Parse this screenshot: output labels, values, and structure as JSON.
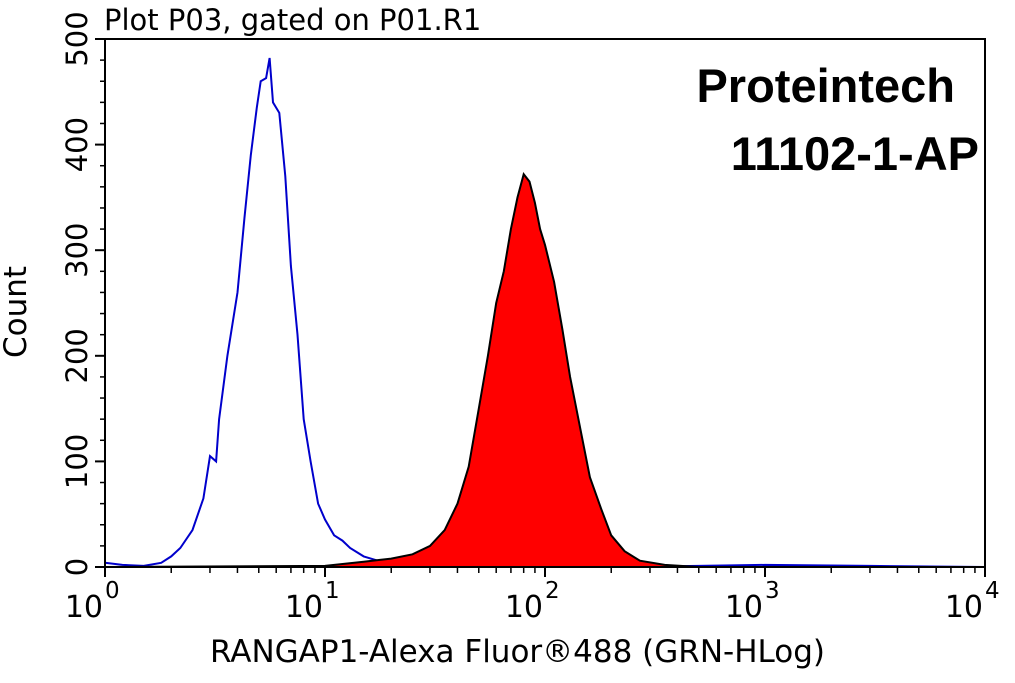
{
  "chart_data": {
    "type": "area",
    "title": "Plot P03, gated on P01.R1",
    "xlabel": "RANGAP1-Alexa Fluor®488 (GRN-HLog)",
    "ylabel": "Count",
    "xscale": "log",
    "xlim": [
      1,
      10000
    ],
    "ylim": [
      0,
      500
    ],
    "x_ticks": [
      {
        "base": "10",
        "exp": "0"
      },
      {
        "base": "10",
        "exp": "1"
      },
      {
        "base": "10",
        "exp": "2"
      },
      {
        "base": "10",
        "exp": "3"
      },
      {
        "base": "10",
        "exp": "4"
      }
    ],
    "y_ticks": [
      "0",
      "100",
      "200",
      "300",
      "400",
      "500"
    ],
    "annotations": [
      "Proteintech",
      "11102-1-AP"
    ],
    "series": [
      {
        "style": "line",
        "color": "#0000cc",
        "points": [
          [
            1,
            4
          ],
          [
            1.2,
            2
          ],
          [
            1.5,
            1
          ],
          [
            1.8,
            4
          ],
          [
            2.0,
            10
          ],
          [
            2.2,
            18
          ],
          [
            2.5,
            35
          ],
          [
            2.8,
            65
          ],
          [
            3.0,
            105
          ],
          [
            3.2,
            100
          ],
          [
            3.3,
            140
          ],
          [
            3.6,
            200
          ],
          [
            4.0,
            260
          ],
          [
            4.3,
            330
          ],
          [
            4.6,
            390
          ],
          [
            4.9,
            435
          ],
          [
            5.1,
            460
          ],
          [
            5.4,
            463
          ],
          [
            5.6,
            482
          ],
          [
            5.8,
            440
          ],
          [
            6.2,
            430
          ],
          [
            6.6,
            370
          ],
          [
            7.0,
            285
          ],
          [
            7.5,
            220
          ],
          [
            8.0,
            140
          ],
          [
            8.6,
            100
          ],
          [
            9.3,
            60
          ],
          [
            10,
            45
          ],
          [
            11,
            30
          ],
          [
            12,
            25
          ],
          [
            13,
            18
          ],
          [
            15,
            10
          ],
          [
            18,
            5
          ],
          [
            22,
            3
          ],
          [
            30,
            1
          ],
          [
            60,
            0
          ],
          [
            100,
            0
          ],
          [
            200,
            0
          ],
          [
            500,
            1
          ],
          [
            1000,
            2
          ],
          [
            3000,
            1
          ],
          [
            10000,
            0
          ]
        ]
      },
      {
        "style": "filled",
        "color": "#ff0000",
        "outline": "#000000",
        "points": [
          [
            1,
            0
          ],
          [
            10,
            1
          ],
          [
            15,
            5
          ],
          [
            20,
            8
          ],
          [
            25,
            12
          ],
          [
            30,
            20
          ],
          [
            35,
            35
          ],
          [
            40,
            60
          ],
          [
            45,
            95
          ],
          [
            50,
            150
          ],
          [
            55,
            200
          ],
          [
            60,
            250
          ],
          [
            65,
            280
          ],
          [
            70,
            320
          ],
          [
            75,
            350
          ],
          [
            80,
            372
          ],
          [
            85,
            365
          ],
          [
            90,
            345
          ],
          [
            95,
            320
          ],
          [
            100,
            305
          ],
          [
            110,
            270
          ],
          [
            120,
            225
          ],
          [
            130,
            180
          ],
          [
            145,
            130
          ],
          [
            160,
            85
          ],
          [
            180,
            55
          ],
          [
            200,
            30
          ],
          [
            230,
            15
          ],
          [
            270,
            6
          ],
          [
            350,
            2
          ],
          [
            500,
            0
          ],
          [
            10000,
            0
          ]
        ]
      }
    ]
  }
}
